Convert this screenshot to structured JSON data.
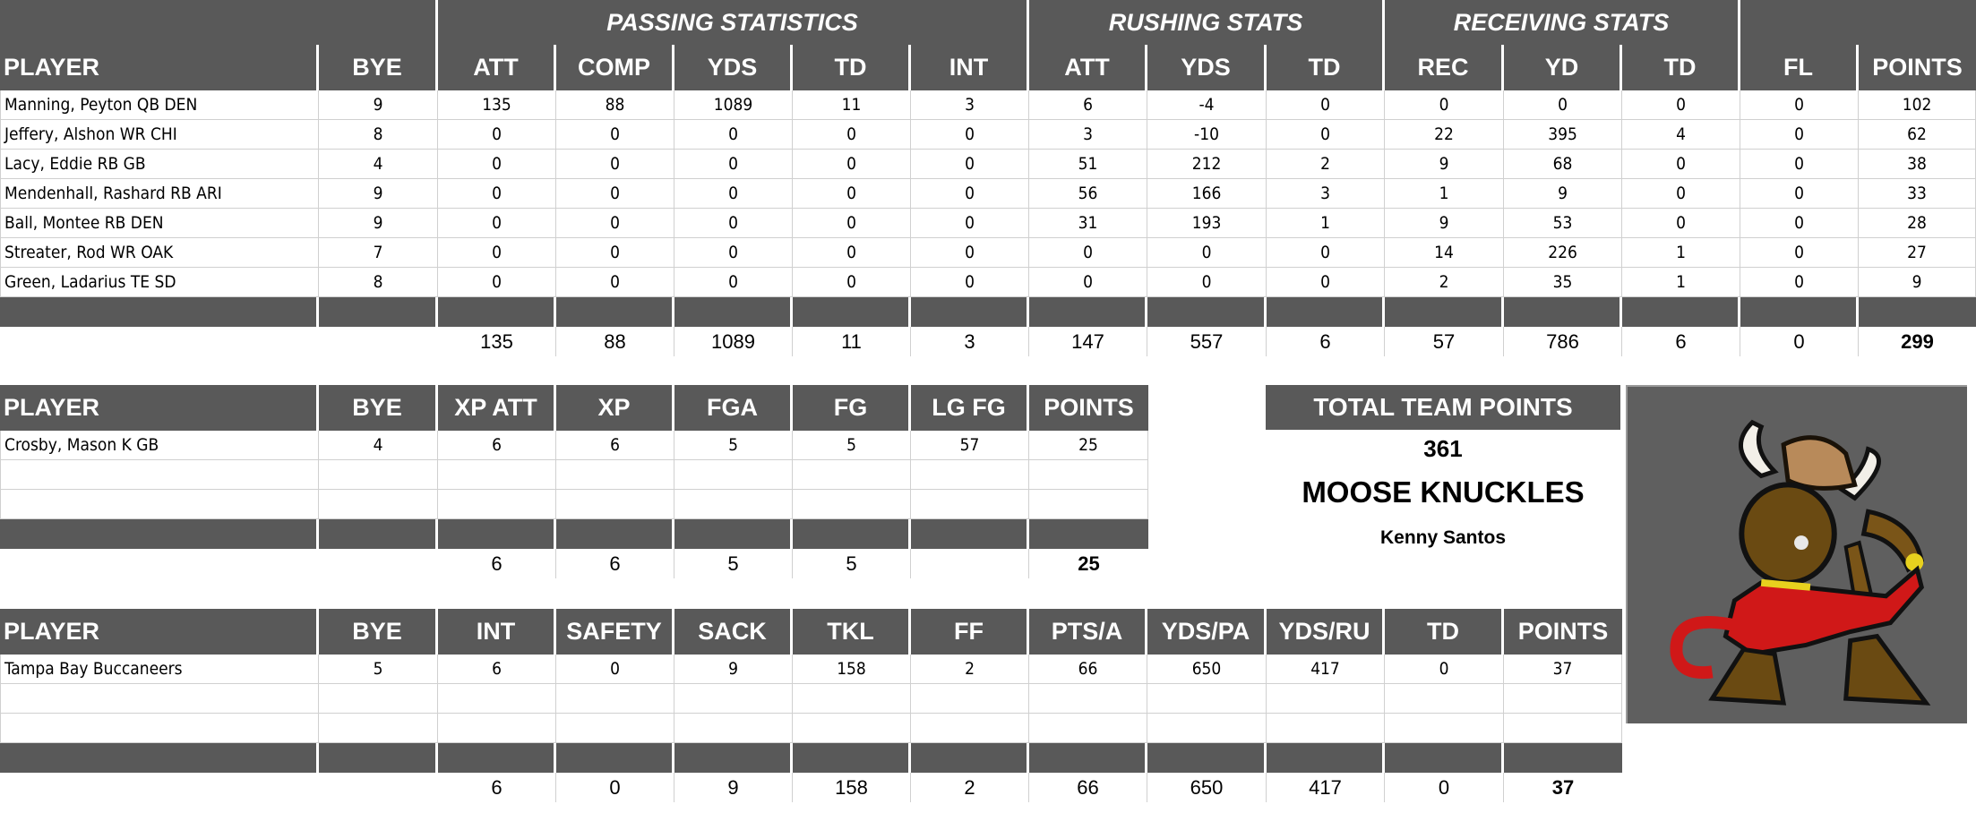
{
  "offense": {
    "group_headers": [
      "",
      "",
      "PASSING STATISTICS",
      "RUSHING STATS",
      "RECEIVING STATS",
      ""
    ],
    "columns": [
      "PLAYER",
      "BYE",
      "ATT",
      "COMP",
      "YDS",
      "TD",
      "INT",
      "ATT",
      "YDS",
      "TD",
      "REC",
      "YD",
      "TD",
      "FL",
      "POINTS"
    ],
    "rows": [
      [
        "Manning, Peyton QB DEN",
        "9",
        "135",
        "88",
        "1089",
        "11",
        "3",
        "6",
        "-4",
        "0",
        "0",
        "0",
        "0",
        "0",
        "102"
      ],
      [
        "Jeffery, Alshon WR CHI",
        "8",
        "0",
        "0",
        "0",
        "0",
        "0",
        "3",
        "-10",
        "0",
        "22",
        "395",
        "4",
        "0",
        "62"
      ],
      [
        "Lacy, Eddie RB GB",
        "4",
        "0",
        "0",
        "0",
        "0",
        "0",
        "51",
        "212",
        "2",
        "9",
        "68",
        "0",
        "0",
        "38"
      ],
      [
        "Mendenhall, Rashard RB ARI",
        "9",
        "0",
        "0",
        "0",
        "0",
        "0",
        "56",
        "166",
        "3",
        "1",
        "9",
        "0",
        "0",
        "33"
      ],
      [
        "Ball, Montee RB DEN",
        "9",
        "0",
        "0",
        "0",
        "0",
        "0",
        "31",
        "193",
        "1",
        "9",
        "53",
        "0",
        "0",
        "28"
      ],
      [
        "Streater, Rod WR OAK",
        "7",
        "0",
        "0",
        "0",
        "0",
        "0",
        "0",
        "0",
        "0",
        "14",
        "226",
        "1",
        "0",
        "27"
      ],
      [
        "Green, Ladarius TE SD",
        "8",
        "0",
        "0",
        "0",
        "0",
        "0",
        "0",
        "0",
        "0",
        "2",
        "35",
        "1",
        "0",
        "9"
      ]
    ],
    "totals": [
      "",
      "",
      "135",
      "88",
      "1089",
      "11",
      "3",
      "147",
      "557",
      "6",
      "57",
      "786",
      "6",
      "0",
      "299"
    ]
  },
  "kicker": {
    "columns": [
      "PLAYER",
      "BYE",
      "XP ATT",
      "XP",
      "FGA",
      "FG",
      "LG FG",
      "POINTS"
    ],
    "rows": [
      [
        "Crosby, Mason K GB",
        "4",
        "6",
        "6",
        "5",
        "5",
        "57",
        "25"
      ],
      [
        "",
        "",
        "",
        "",
        "",
        "",
        "",
        ""
      ],
      [
        "",
        "",
        "",
        "",
        "",
        "",
        "",
        ""
      ]
    ],
    "totals": [
      "",
      "",
      "6",
      "6",
      "5",
      "5",
      "",
      "25"
    ]
  },
  "defense": {
    "columns": [
      "PLAYER",
      "BYE",
      "INT",
      "SAFETY",
      "SACK",
      "TKL",
      "FF",
      "PTS/A",
      "YDS/PA",
      "YDS/RU",
      "TD",
      "POINTS"
    ],
    "rows": [
      [
        "Tampa Bay Buccaneers",
        "5",
        "6",
        "0",
        "9",
        "158",
        "2",
        "66",
        "650",
        "417",
        "0",
        "37"
      ],
      [
        "",
        "",
        "",
        "",
        "",
        "",
        "",
        "",
        "",
        "",
        "",
        ""
      ],
      [
        "",
        "",
        "",
        "",
        "",
        "",
        "",
        "",
        "",
        "",
        "",
        ""
      ]
    ],
    "totals": [
      "",
      "",
      "6",
      "0",
      "9",
      "158",
      "2",
      "66",
      "650",
      "417",
      "0",
      "37"
    ]
  },
  "team": {
    "header": "TOTAL TEAM POINTS",
    "total_points": "361",
    "name": "MOOSE KNUCKLES",
    "owner": "Kenny Santos",
    "logo": "moose-mascot-logo"
  },
  "colors": {
    "header_bg": "#595959",
    "header_text": "#ffffff",
    "grid": "#d0d0d0"
  }
}
